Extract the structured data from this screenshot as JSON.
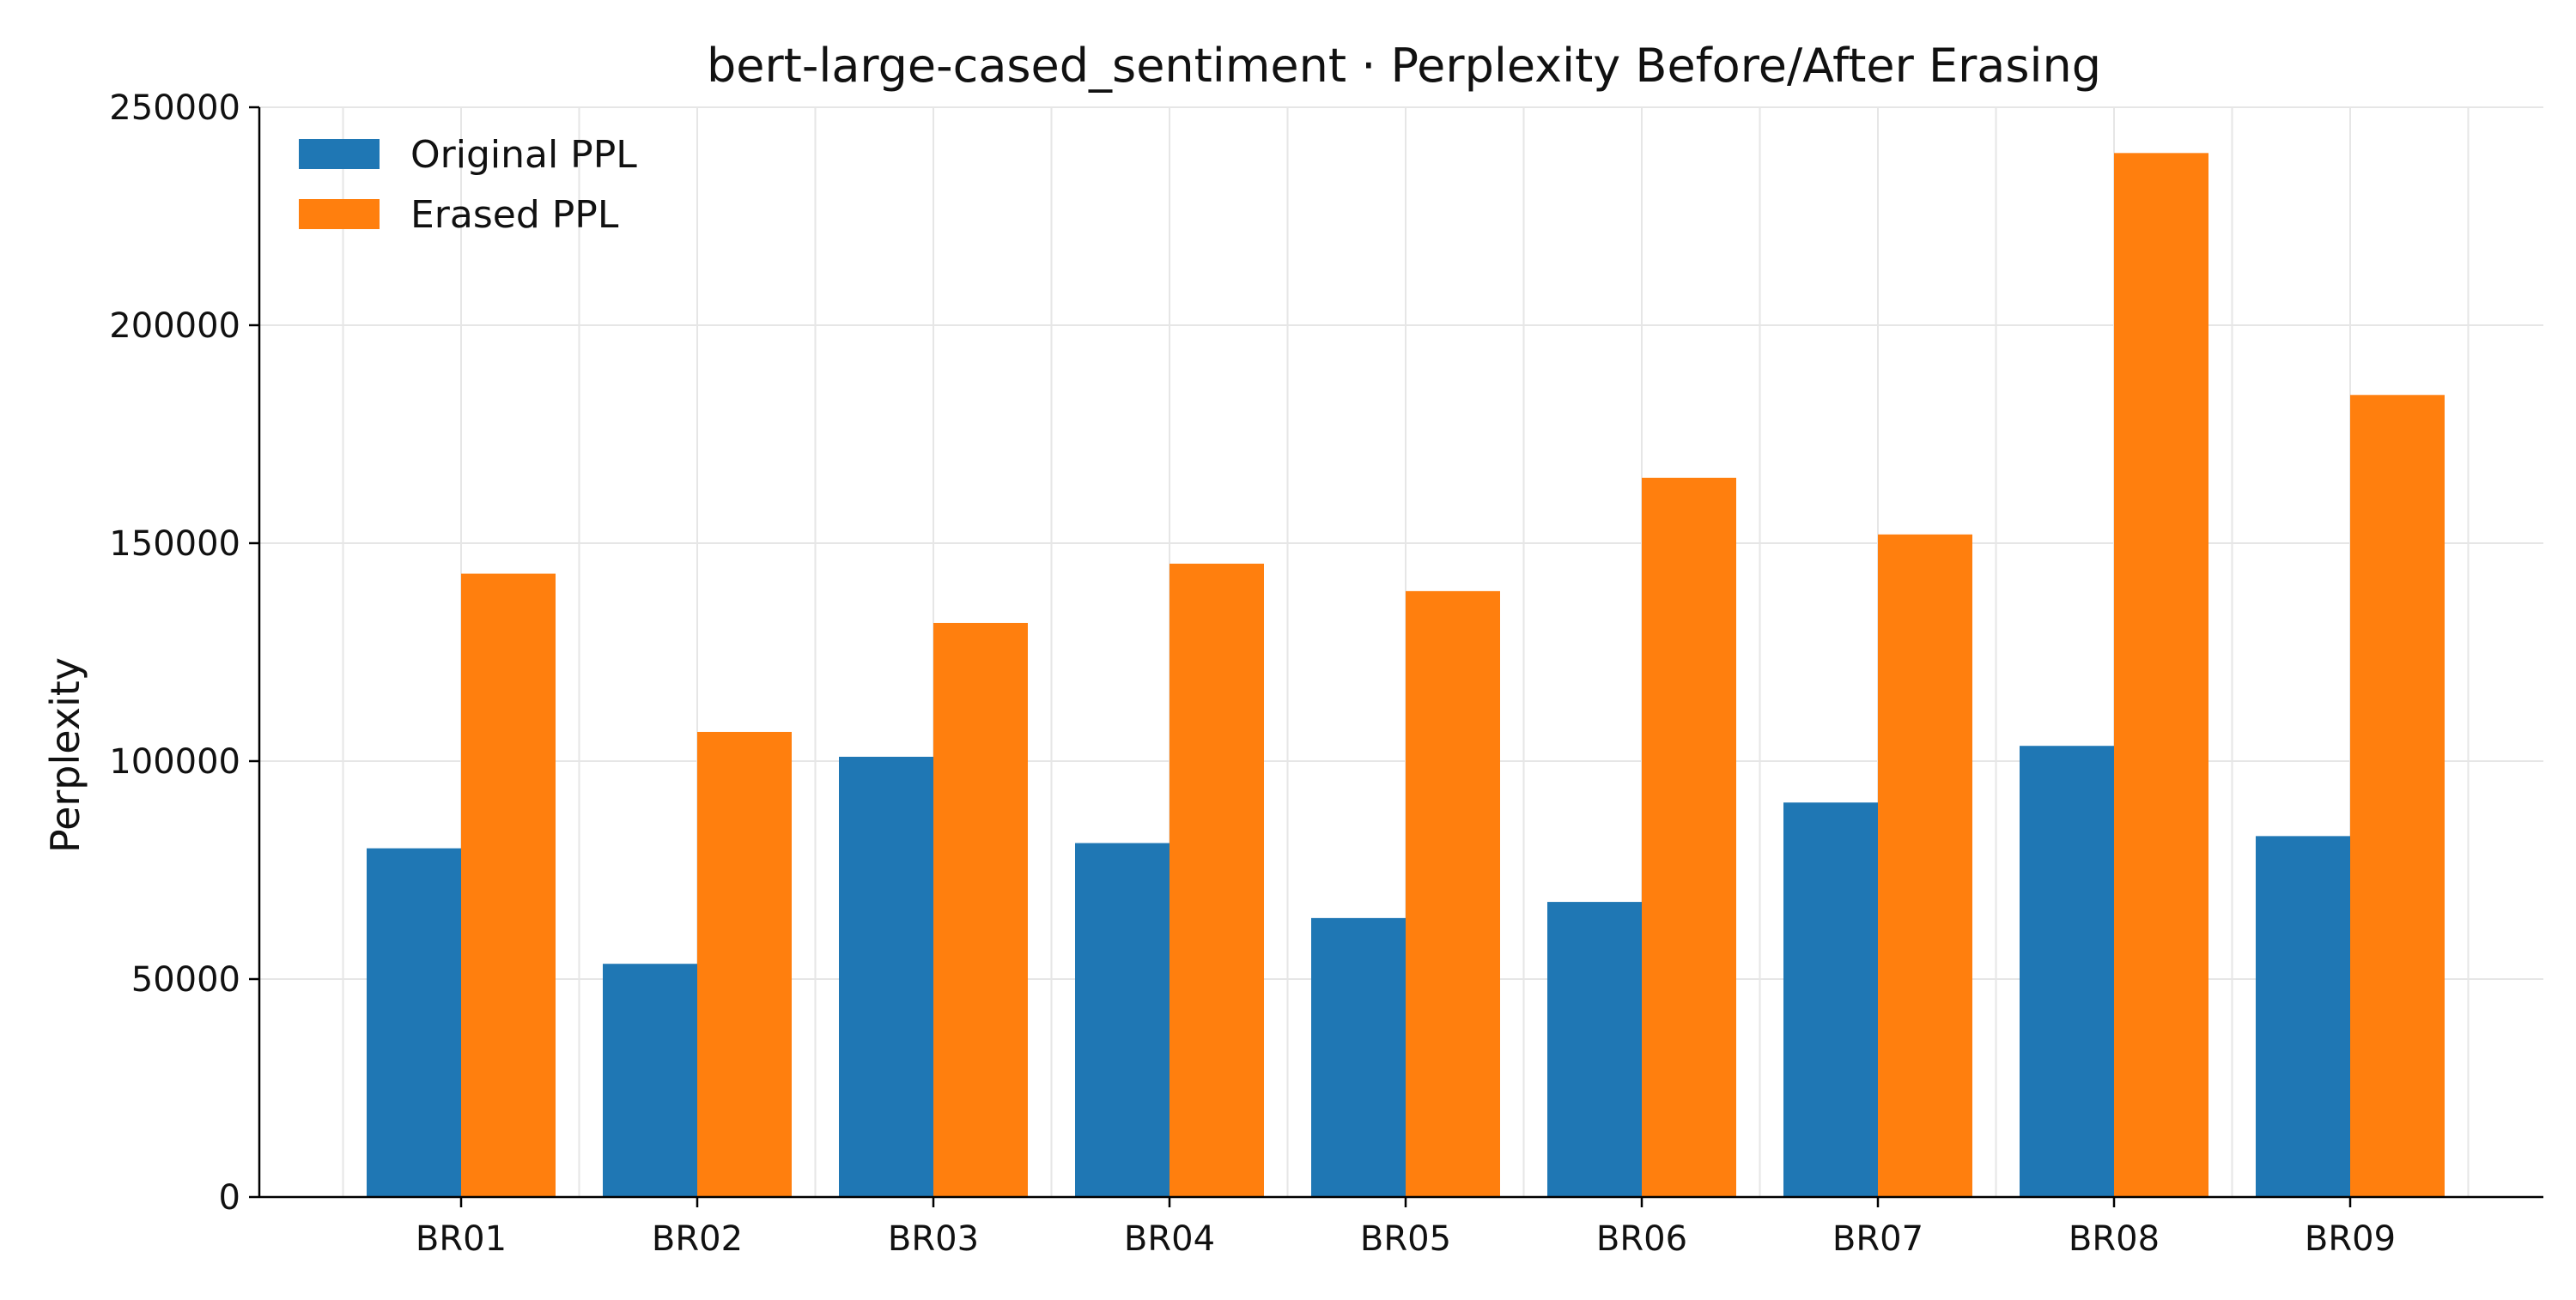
{
  "chart_data": {
    "type": "bar",
    "title": "bert-large-cased_sentiment · Perplexity Before/After Erasing",
    "xlabel": "",
    "ylabel": "Perplexity",
    "categories": [
      "BR01",
      "BR02",
      "BR03",
      "BR04",
      "BR05",
      "BR06",
      "BR07",
      "BR08",
      "BR09"
    ],
    "series": [
      {
        "name": "Original PPL",
        "color": "#1f77b4",
        "values": [
          80000,
          53500,
          101000,
          81200,
          64000,
          67700,
          90500,
          103500,
          82800
        ]
      },
      {
        "name": "Erased PPL",
        "color": "#ff7f0e",
        "values": [
          143000,
          106700,
          131700,
          145300,
          139000,
          165000,
          152000,
          239500,
          184000
        ]
      }
    ],
    "yticks": [
      "0",
      "50000",
      "100000",
      "150000",
      "200000",
      "250000"
    ],
    "ylim": [
      0,
      250000
    ],
    "grid": true,
    "legend_position": "top-left"
  }
}
